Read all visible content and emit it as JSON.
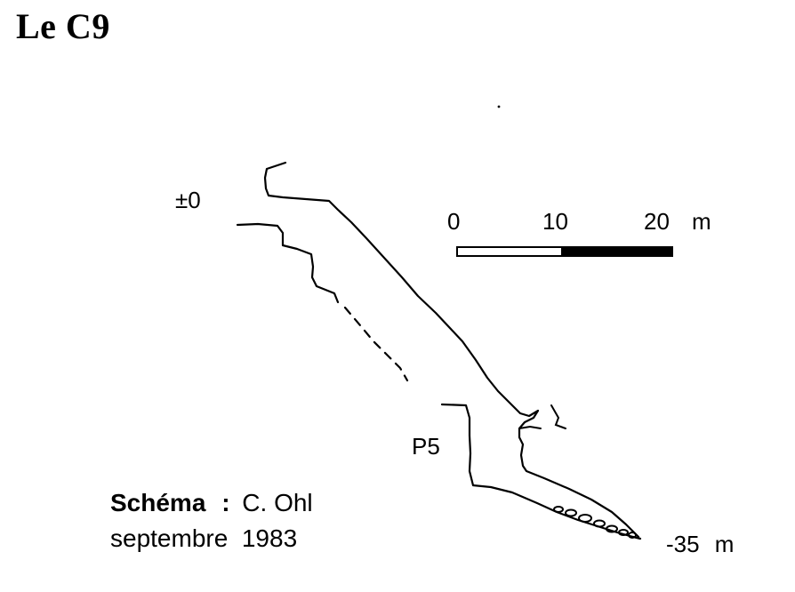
{
  "title": "Le C9",
  "entrance_depth_label": "±0",
  "bottom_depth_label": "-35  m",
  "pitch_label": "P5",
  "scale_bar": {
    "ticks": [
      "0",
      "10",
      "20"
    ],
    "unit": "m"
  },
  "credit": {
    "label": "Schéma",
    "separator": ":",
    "author": "C. Ohl",
    "date": "septembre  1983"
  }
}
